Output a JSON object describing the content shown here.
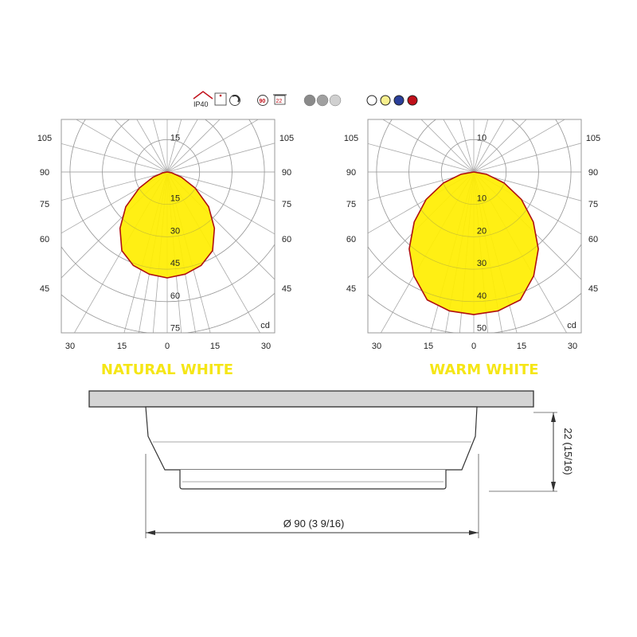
{
  "icons": {
    "ip_rating": "IP40",
    "cutout_label": "90",
    "depth_label": "22",
    "finish_swatches": [
      "#8a8a8a",
      "#a0a0a0",
      "#d0d0d0"
    ],
    "color_options": [
      "#ffffff",
      "#f7ef8e",
      "#2a3f9a",
      "#c0101a"
    ],
    "icon_names": [
      "ip40-house-icon",
      "ceiling-mount-icon",
      "dimmable-icon",
      "cutout-diameter-icon",
      "recess-depth-icon"
    ]
  },
  "colors": {
    "fill": "#ffee00",
    "outline": "#b01010",
    "title": "#f5e616",
    "grid": "#999999"
  },
  "chart_data": [
    {
      "type": "polar",
      "title": "NATURAL WHITE",
      "unit": "cd",
      "ring_labels": [
        "15",
        "30",
        "45",
        "60",
        "75"
      ],
      "upper_ring_label": "15",
      "ring_step": 15,
      "side_labels": [
        "105",
        "90",
        "75",
        "60",
        "45"
      ],
      "bottom_labels": [
        "30",
        "15",
        "0",
        "15",
        "30"
      ],
      "angles": [
        0,
        10,
        20,
        30,
        40,
        50,
        60,
        70,
        80,
        90
      ],
      "values": [
        49,
        48,
        46,
        42,
        34,
        25,
        15,
        7,
        2,
        0
      ]
    },
    {
      "type": "polar",
      "title": "WARM WHITE",
      "unit": "cd",
      "ring_labels": [
        "10",
        "20",
        "30",
        "40",
        "50"
      ],
      "upper_ring_label": "10",
      "ring_step": 10,
      "side_labels": [
        "105",
        "90",
        "75",
        "60",
        "45"
      ],
      "bottom_labels": [
        "30",
        "15",
        "0",
        "15",
        "30"
      ],
      "angles": [
        0,
        10,
        20,
        30,
        40,
        50,
        60,
        70,
        80,
        90
      ],
      "values": [
        44,
        43.5,
        42,
        37,
        31,
        24,
        17,
        10,
        4,
        0
      ]
    }
  ],
  "drawing": {
    "diameter_label": "Ø 90 (3 9/16)",
    "height_label": "22 (15/16)"
  }
}
